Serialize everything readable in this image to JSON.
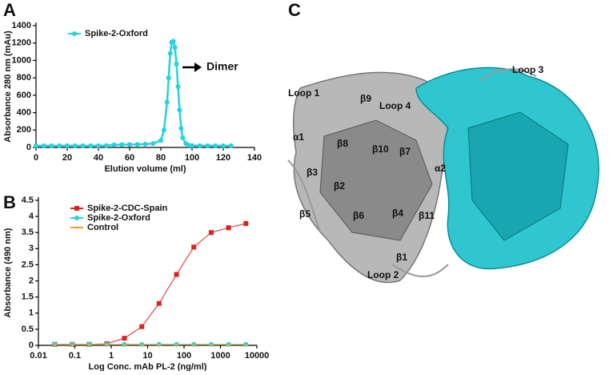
{
  "panels": [
    "A",
    "B",
    "C"
  ],
  "chart_data": [
    {
      "type": "line",
      "xlabel": "Elution volume (ml)",
      "ylabel": "Absorbance 280 nm (mAu)",
      "x": [
        0,
        5,
        10,
        15,
        20,
        25,
        30,
        35,
        40,
        45,
        50,
        55,
        60,
        65,
        70,
        75,
        80,
        82,
        84,
        85,
        86,
        87,
        88,
        89,
        90,
        91,
        92,
        93,
        94,
        96,
        98,
        100,
        105,
        110,
        115,
        120,
        125
      ],
      "series": [
        {
          "name": "Spike-2-Oxford",
          "color": "#22d3e0",
          "marker": "circle",
          "values": [
            20,
            20,
            20,
            20,
            20,
            20,
            20,
            20,
            20,
            22,
            30,
            32,
            33,
            35,
            38,
            45,
            80,
            200,
            520,
            800,
            1080,
            1210,
            1220,
            1150,
            960,
            700,
            430,
            220,
            110,
            45,
            25,
            22,
            20,
            20,
            20,
            20,
            20
          ]
        }
      ],
      "xlim": [
        0,
        140
      ],
      "xticks": [
        0,
        20,
        40,
        60,
        80,
        100,
        120,
        140
      ],
      "ylim": [
        0,
        1400
      ],
      "yticks": [
        0,
        200,
        400,
        600,
        800,
        1000,
        1200,
        1400
      ],
      "annotation": "Dimer",
      "legend": "upper-left",
      "log_x": false
    },
    {
      "type": "line",
      "xlabel": "Log Conc. mAb PL-2 (ng/ml)",
      "ylabel": "Absorbance (490 nm)",
      "x": [
        0.028,
        0.085,
        0.25,
        0.76,
        2.3,
        6.9,
        20.6,
        62,
        185,
        556,
        1667,
        5000
      ],
      "series": [
        {
          "name": "Spike-2-CDC-Spain",
          "color": "#e02020",
          "marker": "square",
          "values": [
            0.03,
            0.03,
            0.03,
            0.05,
            0.22,
            0.58,
            1.3,
            2.2,
            3.05,
            3.5,
            3.65,
            3.78
          ]
        },
        {
          "name": "Spike-2-Oxford",
          "color": "#22d3e0",
          "marker": "circle",
          "values": [
            0.03,
            0.03,
            0.03,
            0.03,
            0.03,
            0.03,
            0.03,
            0.03,
            0.03,
            0.03,
            0.03,
            0.03
          ]
        },
        {
          "name": "Control",
          "color": "#f0a030",
          "marker": "none",
          "values": [
            0.02,
            0.02,
            0.02,
            0.02,
            0.02,
            0.02,
            0.02,
            0.02,
            0.02,
            0.02,
            0.02,
            0.02
          ]
        }
      ],
      "xlim": [
        0.01,
        10000
      ],
      "xticks": [
        0.01,
        0.1,
        1,
        10,
        100,
        1000,
        10000
      ],
      "ylim": [
        0,
        4.5
      ],
      "yticks": [
        0,
        0.5,
        1,
        1.5,
        2,
        2.5,
        3,
        3.5,
        4,
        4.5
      ],
      "legend": "upper-left",
      "log_x": true
    }
  ],
  "structure_labels": [
    "Loop 1",
    "β9",
    "Loop 4",
    "Loop 3",
    "α1",
    "β8",
    "β10",
    "β7",
    "β3",
    "α2",
    "β2",
    "β5",
    "β6",
    "β4",
    "β11",
    "β1",
    "Loop 2"
  ]
}
